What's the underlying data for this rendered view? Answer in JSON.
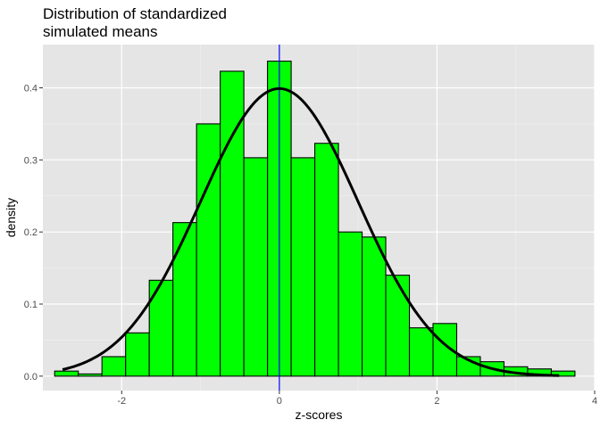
{
  "chart_data": {
    "type": "bar",
    "title_lines": [
      "Distribution of standardized",
      "simulated means"
    ],
    "xlabel": "z-scores",
    "ylabel": "density",
    "xlim": [
      -3.0,
      4.0
    ],
    "ylim": [
      -0.02,
      0.46
    ],
    "x_ticks": [
      -2,
      0,
      2,
      4
    ],
    "x_tick_labels": [
      "-2",
      "0",
      "2",
      "4"
    ],
    "y_ticks": [
      0.0,
      0.1,
      0.2,
      0.3,
      0.4
    ],
    "y_tick_labels": [
      "0.0",
      "0.1",
      "0.2",
      "0.3",
      "0.4"
    ],
    "grid": true,
    "histogram": {
      "bin_width": 0.3,
      "bin_starts": [
        -2.85,
        -2.55,
        -2.25,
        -1.95,
        -1.65,
        -1.35,
        -1.05,
        -0.75,
        -0.45,
        -0.15,
        0.15,
        0.45,
        0.75,
        1.05,
        1.35,
        1.65,
        1.95,
        2.25,
        2.55,
        2.85,
        3.15,
        3.45
      ],
      "density": [
        0.007,
        0.003,
        0.027,
        0.06,
        0.133,
        0.213,
        0.35,
        0.423,
        0.303,
        0.437,
        0.303,
        0.323,
        0.2,
        0.193,
        0.14,
        0.067,
        0.073,
        0.027,
        0.02,
        0.013,
        0.01,
        0.007
      ],
      "fill": "#00ff00",
      "outline": "#000000"
    },
    "normal_curve": {
      "mean": 0,
      "sd": 1,
      "x_range": [
        -2.75,
        3.55
      ],
      "color": "#000000"
    },
    "vline": {
      "x": 0,
      "color": "#0000ff"
    },
    "panel_background": "#e5e5e5"
  }
}
